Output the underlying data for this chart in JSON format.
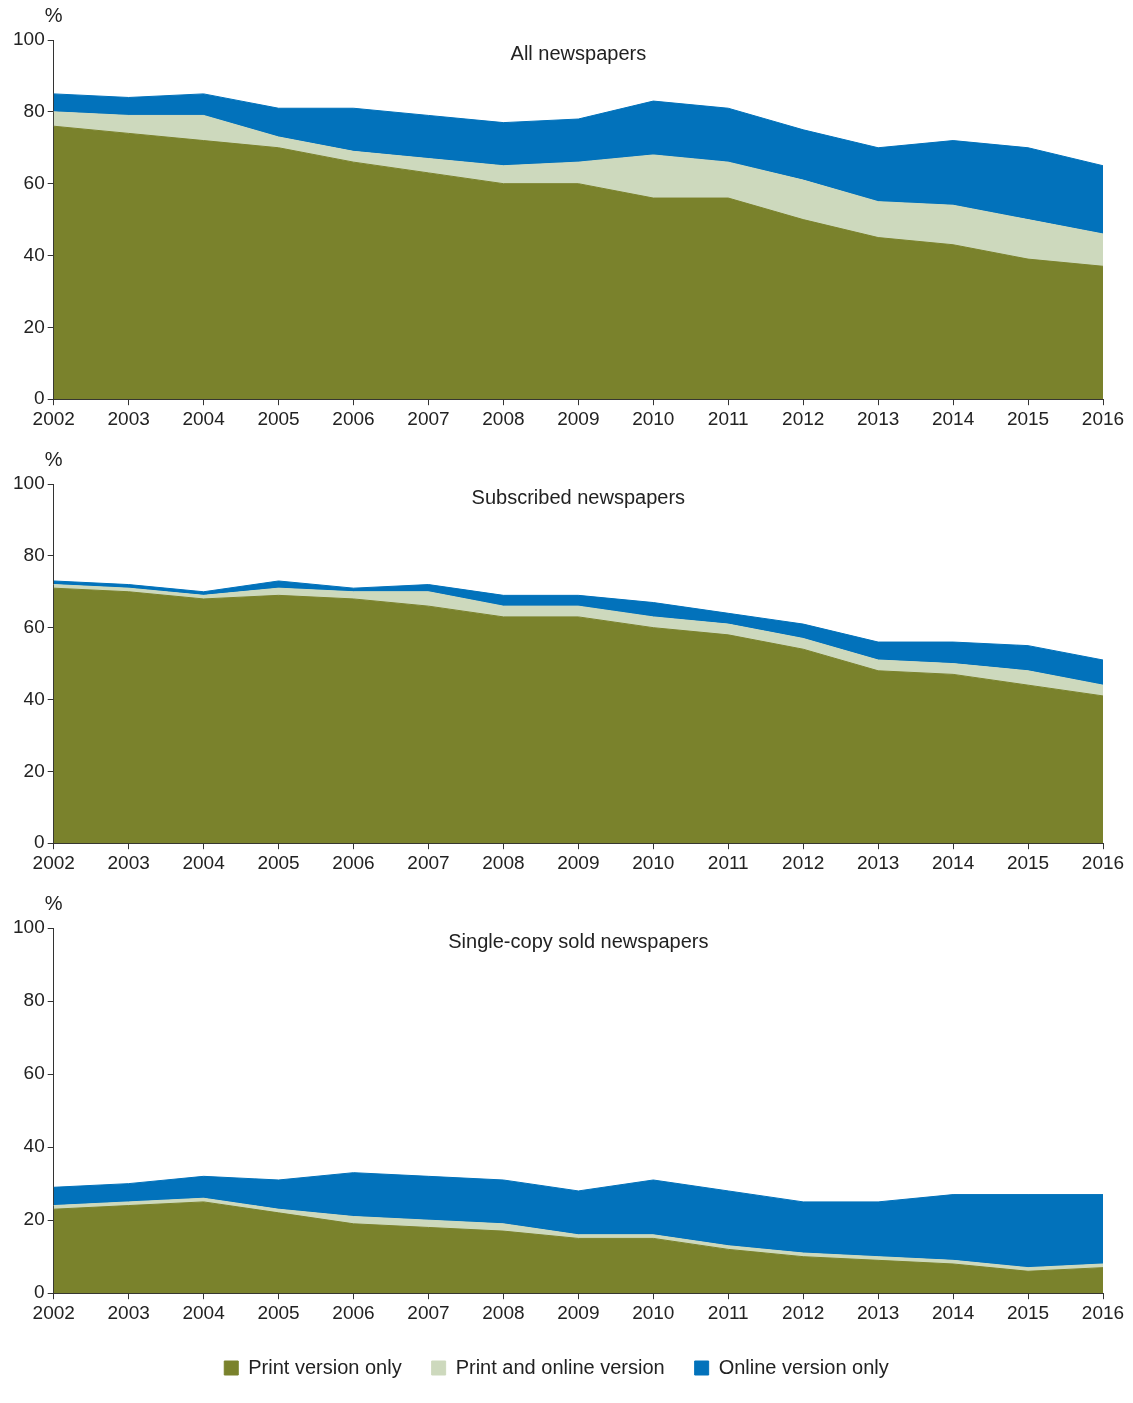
{
  "chart_data": [
    {
      "type": "area",
      "stacked": true,
      "title": "All newspapers",
      "ylabel": "%",
      "categories": [
        "2002",
        "2003",
        "2004",
        "2005",
        "2006",
        "2007",
        "2008",
        "2009",
        "2010",
        "2011",
        "2012",
        "2013",
        "2014",
        "2015",
        "2016"
      ],
      "ylim": [
        0,
        100
      ],
      "yticks": [
        0,
        20,
        40,
        60,
        80,
        100
      ],
      "grid": false,
      "legend": false,
      "series": [
        {
          "color": "#7a822c",
          "values": [
            76,
            74,
            72,
            70,
            66,
            63,
            60,
            60,
            56,
            56,
            50,
            45,
            43,
            39,
            37
          ]
        },
        {
          "color": "#cdd9bd",
          "values": [
            4,
            5,
            7,
            3,
            3,
            4,
            5,
            6,
            12,
            10,
            11,
            10,
            11,
            11,
            9
          ]
        },
        {
          "color": "#0272bb",
          "values": [
            5,
            5,
            6,
            8,
            12,
            12,
            12,
            12,
            15,
            15,
            14,
            15,
            18,
            20,
            19
          ]
        }
      ]
    },
    {
      "type": "area",
      "stacked": true,
      "title": "Subscribed newspapers",
      "ylabel": "%",
      "categories": [
        "2002",
        "2003",
        "2004",
        "2005",
        "2006",
        "2007",
        "2008",
        "2009",
        "2010",
        "2011",
        "2012",
        "2013",
        "2014",
        "2015",
        "2016"
      ],
      "ylim": [
        0,
        100
      ],
      "yticks": [
        0,
        20,
        40,
        60,
        80,
        100
      ],
      "grid": false,
      "legend": false,
      "series": [
        {
          "color": "#7a822c",
          "values": [
            71,
            70,
            68,
            69,
            68,
            66,
            63,
            63,
            60,
            58,
            54,
            48,
            47,
            44,
            41
          ]
        },
        {
          "color": "#cdd9bd",
          "values": [
            1,
            1,
            1,
            2,
            2,
            4,
            3,
            3,
            3,
            3,
            3,
            3,
            3,
            4,
            3
          ]
        },
        {
          "color": "#0272bb",
          "values": [
            1,
            1,
            1,
            2,
            1,
            2,
            3,
            3,
            4,
            3,
            4,
            5,
            6,
            7,
            7
          ]
        }
      ]
    },
    {
      "type": "area",
      "stacked": true,
      "title": "Single-copy sold newspapers",
      "ylabel": "%",
      "categories": [
        "2002",
        "2003",
        "2004",
        "2005",
        "2006",
        "2007",
        "2008",
        "2009",
        "2010",
        "2011",
        "2012",
        "2013",
        "2014",
        "2015",
        "2016"
      ],
      "ylim": [
        0,
        100
      ],
      "yticks": [
        0,
        20,
        40,
        60,
        80,
        100
      ],
      "grid": false,
      "legend": "bottom",
      "series": [
        {
          "name": "Print version only",
          "color": "#7a822c",
          "values": [
            23,
            24,
            25,
            22,
            19,
            18,
            17,
            15,
            15,
            12,
            10,
            9,
            8,
            6,
            7
          ]
        },
        {
          "name": "Print and online version",
          "color": "#cdd9bd",
          "values": [
            1,
            1,
            1,
            1,
            2,
            2,
            2,
            1,
            1,
            1,
            1,
            1,
            1,
            1,
            1
          ]
        },
        {
          "name": "Online version only",
          "color": "#0272bb",
          "values": [
            5,
            5,
            6,
            8,
            12,
            12,
            12,
            12,
            15,
            15,
            14,
            15,
            18,
            20,
            19
          ]
        }
      ]
    }
  ]
}
